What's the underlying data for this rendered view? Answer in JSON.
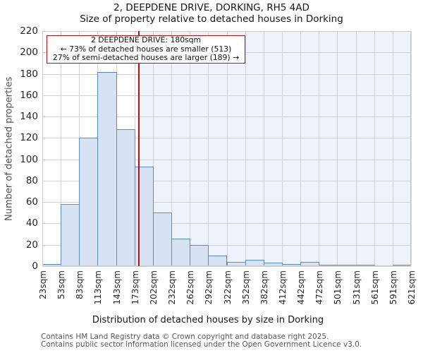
{
  "title": "2, DEEPDENE DRIVE, DORKING, RH5 4AD",
  "subtitle": "Size of property relative to detached houses in Dorking",
  "annotation": {
    "line1": "2 DEEPDENE DRIVE: 180sqm",
    "line2": "← 73% of detached houses are smaller (513)",
    "line3": "27% of semi-detached houses are larger (189) →"
  },
  "chart_data": {
    "type": "bar",
    "title": "2, DEEPDENE DRIVE, DORKING, RH5 4AD",
    "subtitle": "Size of property relative to detached houses in Dorking",
    "xlabel": "Distribution of detached houses by size in Dorking",
    "ylabel": "Number of detached properties",
    "x_tick_labels": [
      "23sqm",
      "53sqm",
      "83sqm",
      "113sqm",
      "143sqm",
      "173sqm",
      "202sqm",
      "232sqm",
      "262sqm",
      "292sqm",
      "322sqm",
      "352sqm",
      "382sqm",
      "412sqm",
      "442sqm",
      "472sqm",
      "501sqm",
      "531sqm",
      "561sqm",
      "591sqm",
      "621sqm"
    ],
    "x_tick_values": [
      23,
      53,
      83,
      113,
      143,
      173,
      202,
      232,
      262,
      292,
      322,
      352,
      382,
      412,
      442,
      472,
      501,
      531,
      561,
      591,
      621
    ],
    "values": [
      2,
      58,
      120,
      182,
      128,
      93,
      50,
      26,
      20,
      10,
      4,
      6,
      3,
      2,
      4,
      1,
      1,
      1,
      0,
      1
    ],
    "ylim": [
      0,
      220
    ],
    "ytick_step": 20,
    "grid": true,
    "legend": false,
    "marker_value": 180,
    "colors": {
      "bar_fill": "#d7e2f3",
      "bar_edge": "#5b8cc8",
      "marker_line": "#b01218",
      "shade_right_of_marker": "#eef2fb",
      "gridline": "#cfd2d8"
    }
  },
  "footer": {
    "line1": "Contains HM Land Registry data © Crown copyright and database right 2025.",
    "line2": "Contains public sector information licensed under the Open Government Licence v3.0."
  }
}
